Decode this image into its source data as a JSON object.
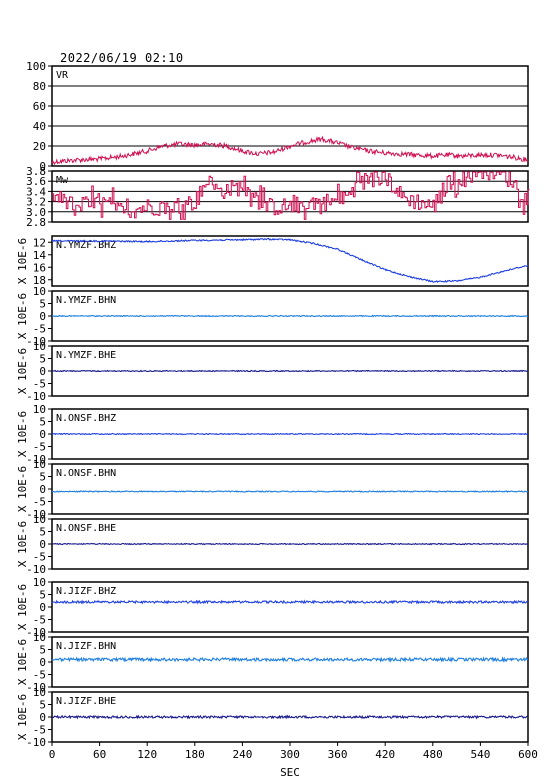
{
  "header": {
    "datetime": "2022/06/19  02:10"
  },
  "x_axis": {
    "label": "SEC",
    "ticks": [
      "0",
      "60",
      "120",
      "180",
      "240",
      "300",
      "360",
      "420",
      "480",
      "540",
      "600"
    ]
  },
  "colors": {
    "vr": "#d01050",
    "mw": "#d01050",
    "dark_blue": "#1a1a8c",
    "blue": "#2040e0",
    "light_blue": "#1e7fe0",
    "frame": "#000000"
  },
  "chart_data": [
    {
      "type": "line",
      "label": "VR",
      "ylim": [
        0,
        100
      ],
      "yticks": [
        "0",
        "20",
        "40",
        "60",
        "80",
        "100"
      ],
      "grid": true,
      "series": [
        {
          "x": [
            0,
            30,
            60,
            90,
            120,
            140,
            160,
            180,
            200,
            220,
            240,
            260,
            280,
            300,
            320,
            340,
            360,
            380,
            400,
            420,
            440,
            460,
            480,
            500,
            520,
            540,
            560,
            580,
            600
          ],
          "values": [
            4,
            6,
            7,
            10,
            15,
            20,
            22,
            21,
            22,
            20,
            15,
            12,
            14,
            20,
            24,
            27,
            23,
            18,
            15,
            13,
            12,
            11,
            10,
            11,
            10,
            11,
            11,
            9,
            6
          ]
        }
      ]
    },
    {
      "type": "line",
      "label": "Mw",
      "ylim": [
        2.8,
        3.8
      ],
      "yticks": [
        "2.8",
        "3.0",
        "3.2",
        "3.4",
        "3.6",
        "3.8"
      ],
      "grid": true,
      "series": [
        {
          "x": [
            0,
            30,
            60,
            90,
            120,
            150,
            180,
            195,
            210,
            240,
            270,
            300,
            330,
            360,
            380,
            400,
            420,
            440,
            460,
            480,
            500,
            520,
            540,
            560,
            580,
            600
          ],
          "values": [
            3.3,
            3.1,
            3.2,
            3.0,
            3.1,
            3.1,
            3.2,
            3.6,
            3.4,
            3.5,
            3.1,
            3.1,
            3.2,
            3.2,
            3.4,
            3.7,
            3.7,
            3.3,
            3.2,
            3.1,
            3.6,
            3.7,
            3.8,
            3.8,
            3.6,
            3.2
          ]
        }
      ]
    },
    {
      "type": "line",
      "label": "N.YMZF.BHZ",
      "ylim": [
        -19,
        -11
      ],
      "yticks": [
        "12",
        "14",
        "16",
        "18"
      ],
      "ylabel": "X 10E-6",
      "series": [
        {
          "x": [
            0,
            60,
            120,
            180,
            240,
            270,
            300,
            330,
            360,
            390,
            420,
            450,
            480,
            510,
            540,
            570,
            600
          ],
          "values": [
            -11.8,
            -11.8,
            -11.9,
            -11.7,
            -11.6,
            -11.5,
            -11.6,
            -12.2,
            -13.1,
            -14.8,
            -16.4,
            -17.5,
            -18.3,
            -18.2,
            -17.6,
            -16.6,
            -15.7
          ]
        }
      ]
    },
    {
      "type": "line",
      "label": "N.YMZF.BHN",
      "ylim": [
        -10,
        10
      ],
      "yticks": [
        "-10",
        "-5",
        "0",
        "5",
        "10"
      ],
      "ylabel": "X 10E-6",
      "series": [
        {
          "x": [
            0,
            600
          ],
          "values": [
            0,
            0
          ]
        }
      ]
    },
    {
      "type": "line",
      "label": "N.YMZF.BHE",
      "ylim": [
        -10,
        10
      ],
      "yticks": [
        "-10",
        "-5",
        "0",
        "5",
        "10"
      ],
      "ylabel": "X 10E-6",
      "series": [
        {
          "x": [
            0,
            600
          ],
          "values": [
            0,
            0
          ]
        }
      ]
    },
    {
      "type": "line",
      "label": "N.ONSF.BHZ",
      "ylim": [
        -10,
        10
      ],
      "yticks": [
        "-10",
        "-5",
        "0",
        "5",
        "10"
      ],
      "ylabel": "X 10E-6",
      "series": [
        {
          "x": [
            0,
            600
          ],
          "values": [
            0,
            0
          ]
        }
      ]
    },
    {
      "type": "line",
      "label": "N.ONSF.BHN",
      "ylim": [
        -10,
        10
      ],
      "yticks": [
        "-10",
        "-5",
        "0",
        "5",
        "10"
      ],
      "ylabel": "X 10E-6",
      "series": [
        {
          "x": [
            0,
            600
          ],
          "values": [
            -1,
            -1
          ]
        }
      ]
    },
    {
      "type": "line",
      "label": "N.ONSF.BHE",
      "ylim": [
        -10,
        10
      ],
      "yticks": [
        "-10",
        "-5",
        "0",
        "5",
        "10"
      ],
      "ylabel": "X 10E-6",
      "series": [
        {
          "x": [
            0,
            600
          ],
          "values": [
            0,
            0
          ]
        }
      ]
    },
    {
      "type": "line",
      "label": "N.JIZF.BHZ",
      "ylim": [
        -10,
        10
      ],
      "yticks": [
        "-10",
        "-5",
        "0",
        "5",
        "10"
      ],
      "ylabel": "X 10E-6",
      "series": [
        {
          "x": [
            0,
            600
          ],
          "values": [
            2,
            2
          ]
        }
      ]
    },
    {
      "type": "line",
      "label": "N.JIZF.BHN",
      "ylim": [
        -10,
        10
      ],
      "yticks": [
        "-10",
        "-5",
        "0",
        "5",
        "10"
      ],
      "ylabel": "X 10E-6",
      "series": [
        {
          "x": [
            0,
            600
          ],
          "values": [
            1,
            1
          ]
        }
      ]
    },
    {
      "type": "line",
      "label": "N.JIZF.BHE",
      "ylim": [
        -10,
        10
      ],
      "yticks": [
        "-10",
        "-5",
        "0",
        "5",
        "10"
      ],
      "ylabel": "X 10E-6",
      "series": [
        {
          "x": [
            0,
            600
          ],
          "values": [
            0,
            0
          ]
        }
      ]
    }
  ]
}
